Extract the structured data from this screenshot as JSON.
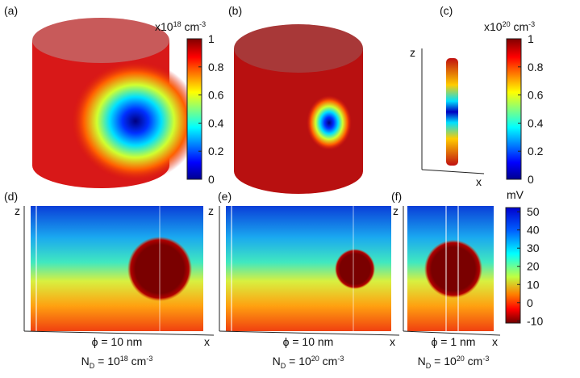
{
  "panels": [
    {
      "label": "(a)"
    },
    {
      "label": "(b)"
    },
    {
      "label": "(c)"
    },
    {
      "label": "(d)"
    },
    {
      "label": "(e)"
    },
    {
      "label": "(f)"
    }
  ],
  "axes": {
    "z": "z",
    "x": "x"
  },
  "colorbars": [
    {
      "unit": {
        "base": "x10",
        "exp": "18",
        "rest": " cm",
        "rest_exp": "-3"
      },
      "ylim": [
        0,
        1
      ],
      "yticks": [
        0,
        0.2,
        0.4,
        0.6,
        0.8,
        1
      ]
    },
    {
      "unit": {
        "base": "x10",
        "exp": "20",
        "rest": " cm",
        "rest_exp": "-3"
      },
      "ylim": [
        0,
        1
      ],
      "yticks": [
        0,
        0.2,
        0.4,
        0.6,
        0.8,
        1
      ]
    },
    {
      "unit": {
        "base": "mV"
      },
      "ylim": [
        -11.2,
        52.3
      ],
      "yticks": [
        -10,
        0,
        10,
        20,
        30,
        40,
        50
      ]
    }
  ],
  "captions": [
    {
      "phi": "ϕ = 10 nm",
      "n": "N",
      "sub": "D",
      "eq": " = 10",
      "exp": "18",
      "unit": " cm",
      "unit_exp": "-3"
    },
    {
      "phi": "ϕ = 10 nm",
      "n": "N",
      "sub": "D",
      "eq": " = 10",
      "exp": "20",
      "unit": " cm",
      "unit_exp": "-3"
    },
    {
      "phi": "ϕ = 1 nm",
      "n": "N",
      "sub": "D",
      "eq": " = 10",
      "exp": "20",
      "unit": " cm",
      "unit_exp": "-3"
    }
  ]
}
